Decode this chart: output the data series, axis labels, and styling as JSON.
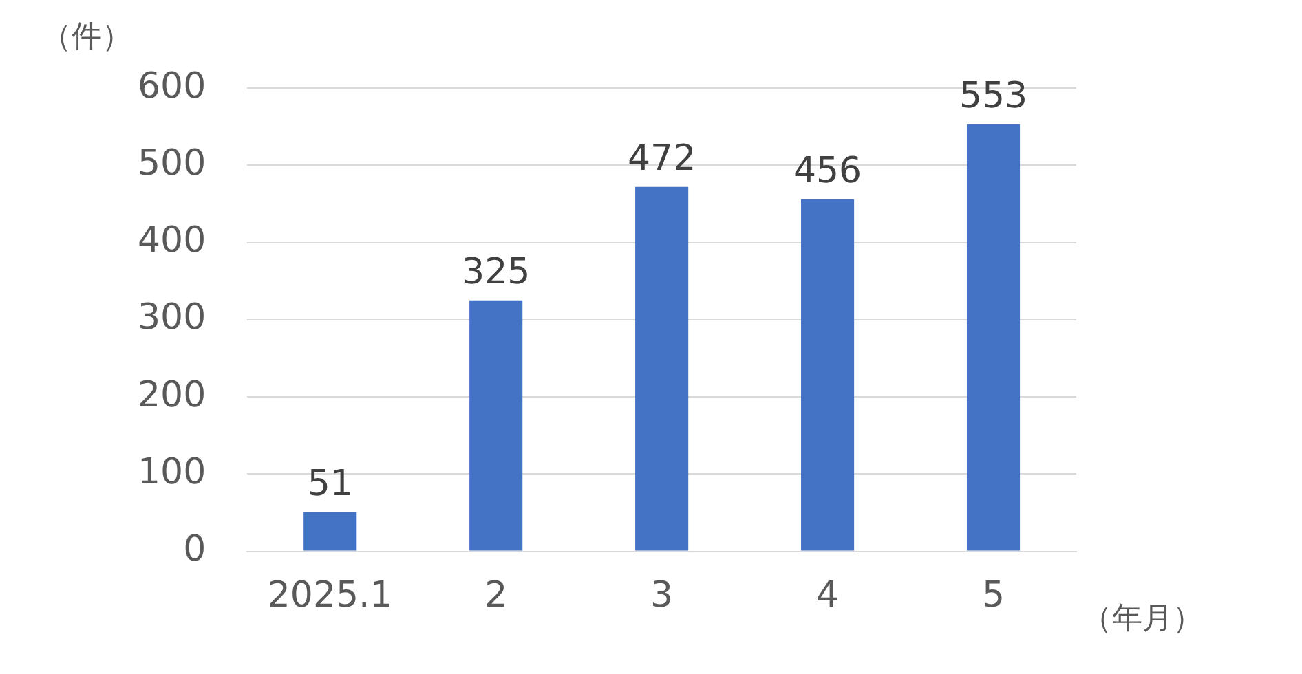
{
  "chart_data": {
    "type": "bar",
    "ylabel": "（件）",
    "xlabel": "（年月）",
    "categories": [
      "2025.1",
      "2",
      "3",
      "4",
      "5"
    ],
    "values": [
      51,
      325,
      472,
      456,
      553
    ],
    "color": "#4472c4",
    "ylim": [
      0,
      600
    ],
    "yticks": [
      0,
      100,
      200,
      300,
      400,
      500,
      600
    ],
    "grid": "y",
    "data_labels": true,
    "legend": false
  }
}
